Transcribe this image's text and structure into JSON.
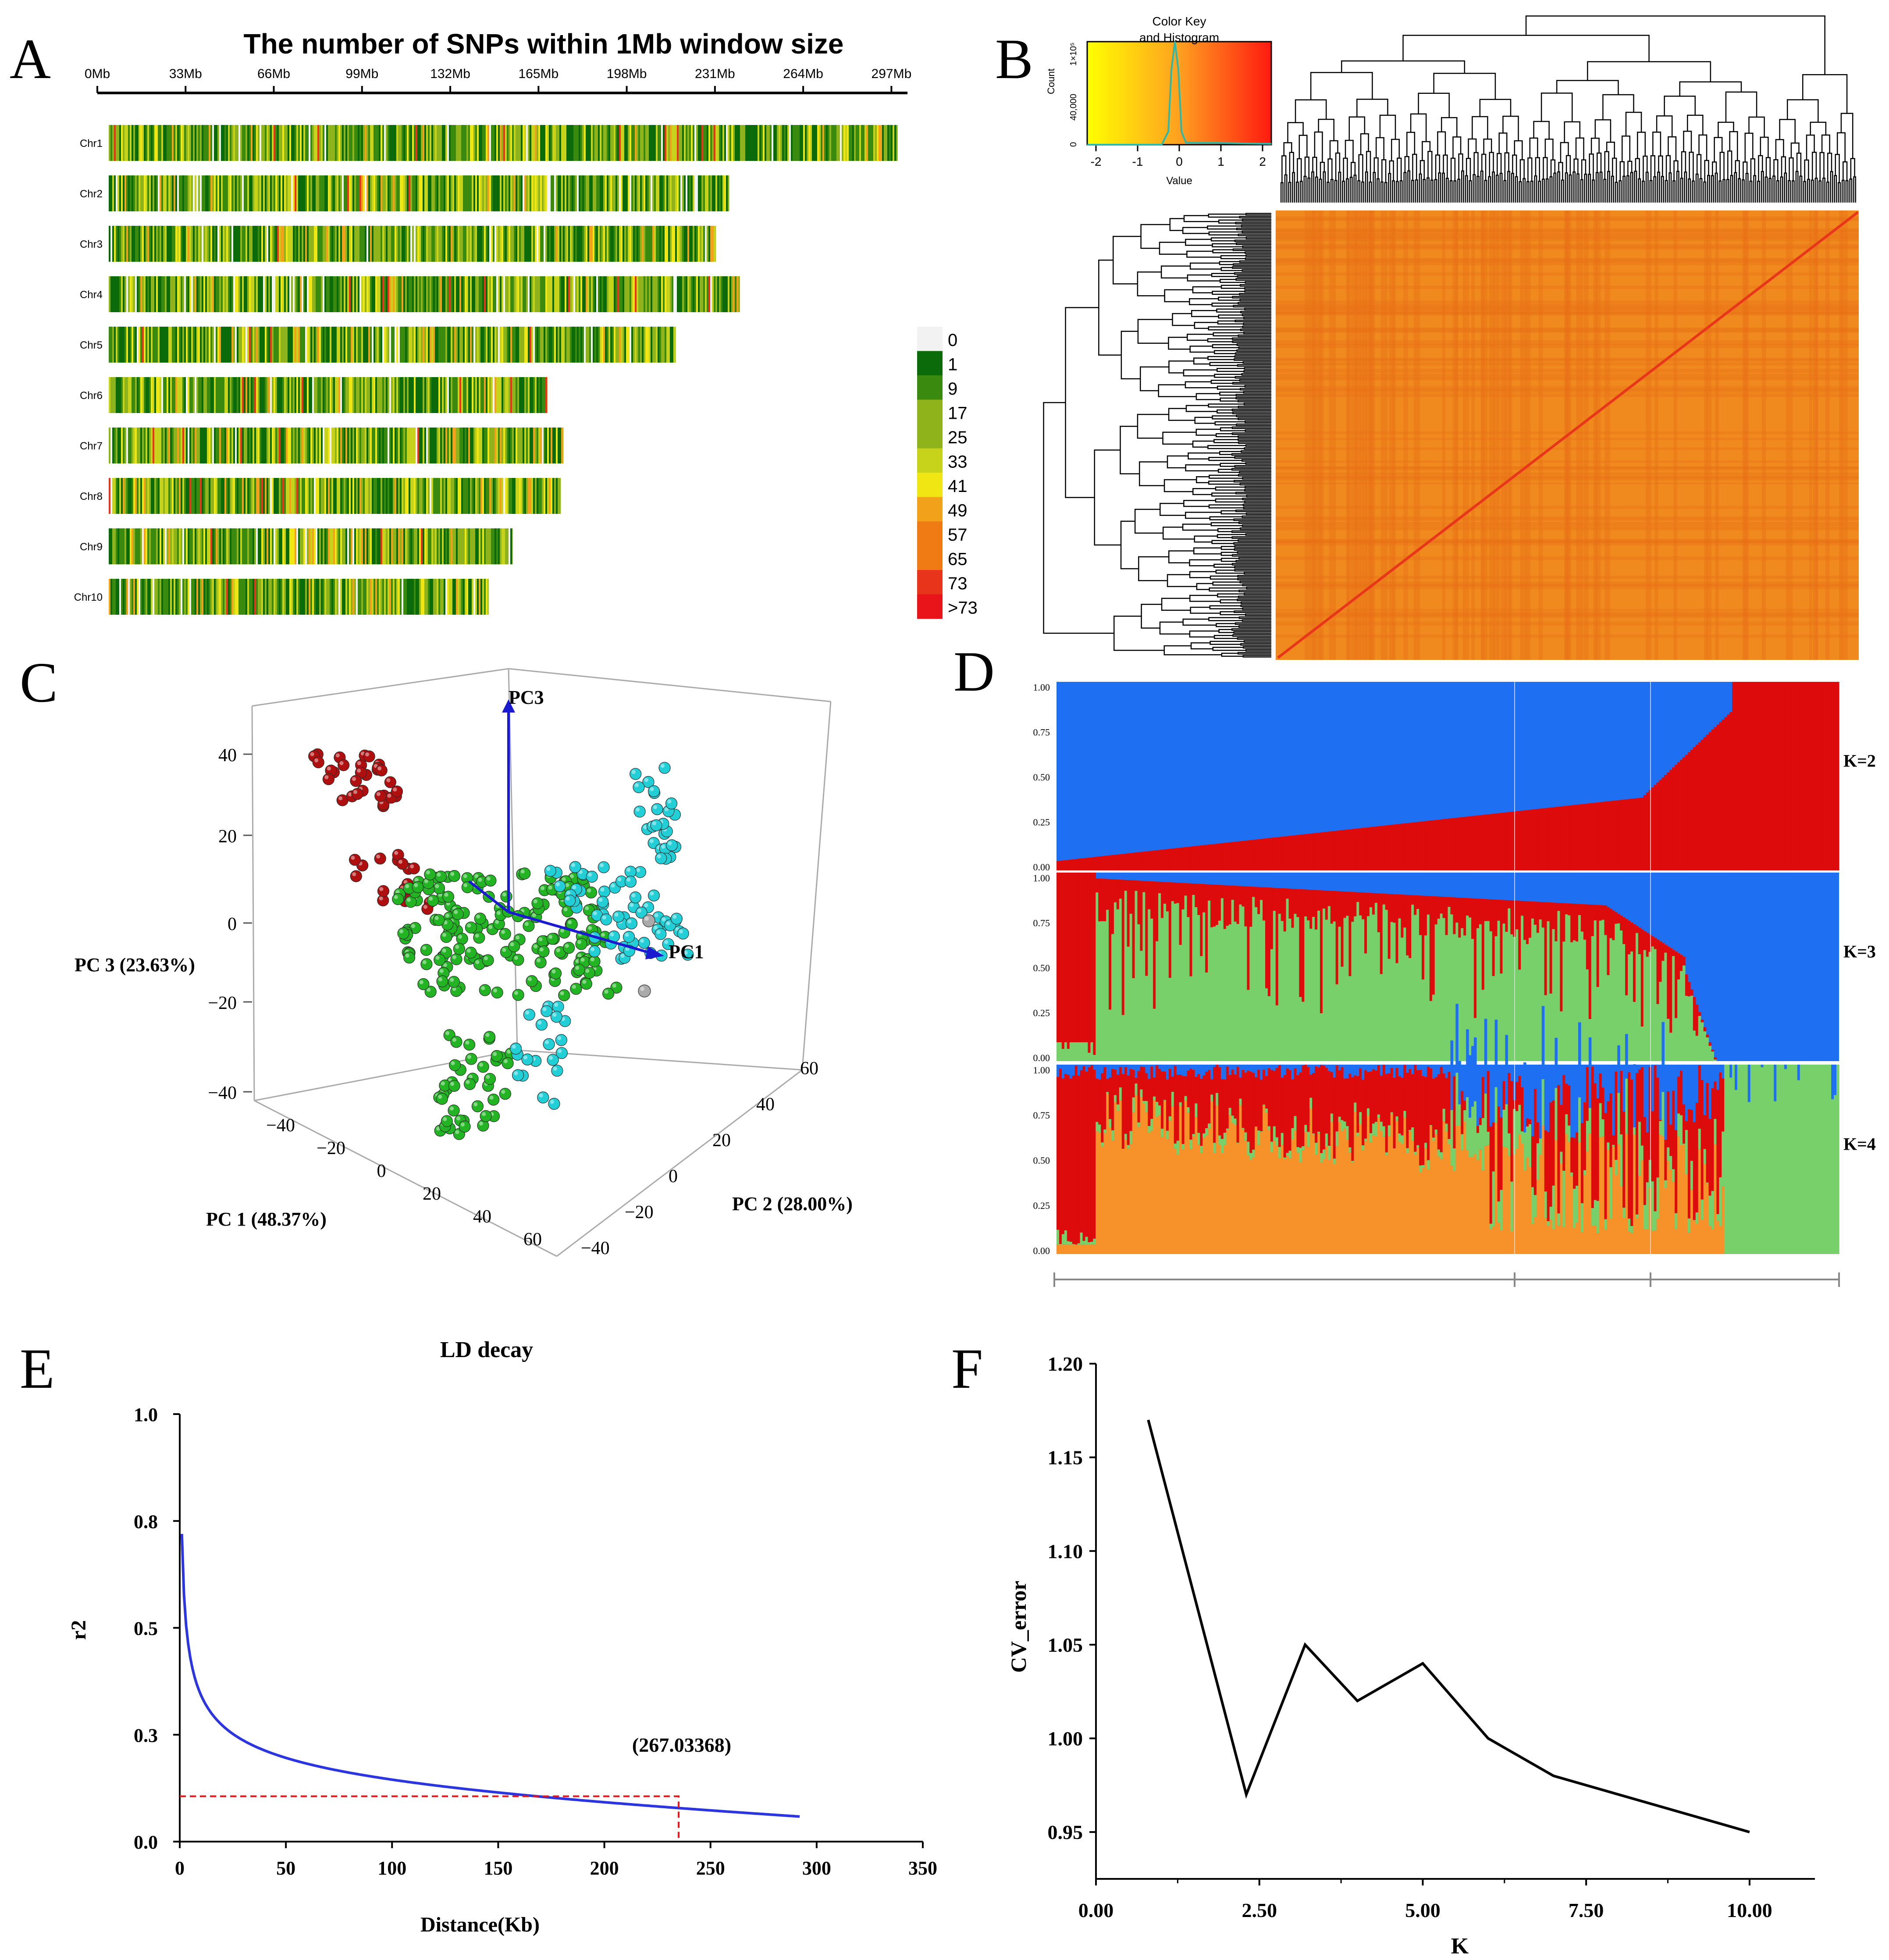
{
  "panels": {
    "a": "A",
    "b": "B",
    "c": "C",
    "d": "D",
    "e": "E",
    "f": "F"
  },
  "colors": {
    "white": "#f2f2f2",
    "dgreen": "#0b6b0b",
    "green": "#3a8a10",
    "lgreen": "#8fb31a",
    "ygreen": "#c7d21a",
    "yellow": "#f0e614",
    "orange": "#f2a11a",
    "dorange": "#f07a14",
    "red": "#e8341a",
    "bred": "#e8141a",
    "blue": "#1f6ff2",
    "kred": "#dd0b0b",
    "kgreen": "#78d06a",
    "korange": "#f7922a",
    "heat": "#f0891e",
    "line_blue": "#2b35e0",
    "dash_red": "#e8141a"
  },
  "chart_data": [
    {
      "id": "A",
      "type": "heatmap",
      "title": "The number of SNPs within 1Mb window size",
      "xticks": [
        "0Mb",
        "33Mb",
        "66Mb",
        "99Mb",
        "132Mb",
        "165Mb",
        "198Mb",
        "231Mb",
        "264Mb",
        "297Mb"
      ],
      "xrange": [
        0,
        300
      ],
      "chromosomes": [
        {
          "name": "Chr1",
          "length": 300
        },
        {
          "name": "Chr2",
          "length": 237
        },
        {
          "name": "Chr3",
          "length": 232
        },
        {
          "name": "Chr4",
          "length": 241
        },
        {
          "name": "Chr5",
          "length": 217
        },
        {
          "name": "Chr6",
          "length": 169
        },
        {
          "name": "Chr7",
          "length": 175
        },
        {
          "name": "Chr8",
          "length": 174
        },
        {
          "name": "Chr9",
          "length": 156
        },
        {
          "name": "Chr10",
          "length": 147
        }
      ],
      "legend": [
        "0",
        "1",
        "9",
        "17",
        "25",
        "33",
        "41",
        "49",
        "57",
        "65",
        "73",
        ">73"
      ]
    },
    {
      "id": "B",
      "type": "heatmap",
      "key_title": "Color Key",
      "key_subtitle": "and Histogram",
      "key_ylabel": "Count",
      "key_yticks": [
        "0",
        "40,000",
        "1×10⁵"
      ],
      "key_xticks": [
        "-2",
        "-1",
        "0",
        "1",
        "2"
      ],
      "key_xlabel": "Value"
    },
    {
      "id": "C",
      "type": "scatter",
      "axes_labels": {
        "pc1": "PC1",
        "pc2": "PC2",
        "pc3": "PC3"
      },
      "xlabel": "PC 1 (48.37%)",
      "ylabel": "PC 2 (28.00%)",
      "zlabel": "PC 3 (23.63%)",
      "zticks": [
        "40",
        "20",
        "0",
        "−20",
        "−40"
      ],
      "xticks": [
        "−40",
        "−20",
        "0",
        "20",
        "40",
        "60"
      ],
      "yticks": [
        "−40",
        "−20",
        "0",
        "20",
        "40",
        "60"
      ]
    },
    {
      "id": "D",
      "type": "bar",
      "rows": [
        {
          "label": "K=2"
        },
        {
          "label": "K=3"
        },
        {
          "label": "K=4"
        }
      ],
      "yticks": [
        "1.00",
        "0.75",
        "0.50",
        "0.25",
        "0.00"
      ]
    },
    {
      "id": "E",
      "type": "line",
      "title": "LD decay",
      "xlabel": "Distance(Kb)",
      "ylabel": "r2",
      "xlim": [
        0,
        350
      ],
      "ylim": [
        0,
        1
      ],
      "xticks": [
        "0",
        "50",
        "100",
        "150",
        "200",
        "250",
        "300",
        "350"
      ],
      "yticks": [
        "0.0",
        "0.3",
        "0.5",
        "0.8",
        "1.0"
      ],
      "annotation": "(267.03368)",
      "threshold": {
        "x": 235,
        "y": 0.106
      }
    },
    {
      "id": "F",
      "type": "line",
      "xlabel": "K",
      "ylabel": "CV_error",
      "xlim": [
        0,
        11
      ],
      "ylim": [
        0.925,
        1.2
      ],
      "xticks": [
        "0.00",
        "2.50",
        "5.00",
        "7.50",
        "10.00"
      ],
      "yticks": [
        "1.20",
        "1.15",
        "1.10",
        "1.05",
        "1.00",
        "0.95"
      ],
      "x": [
        0.8,
        2.3,
        3.2,
        4,
        5,
        6,
        7,
        10
      ],
      "y": [
        1.17,
        0.97,
        1.05,
        1.02,
        1.04,
        1.0,
        0.98,
        0.95
      ]
    }
  ]
}
